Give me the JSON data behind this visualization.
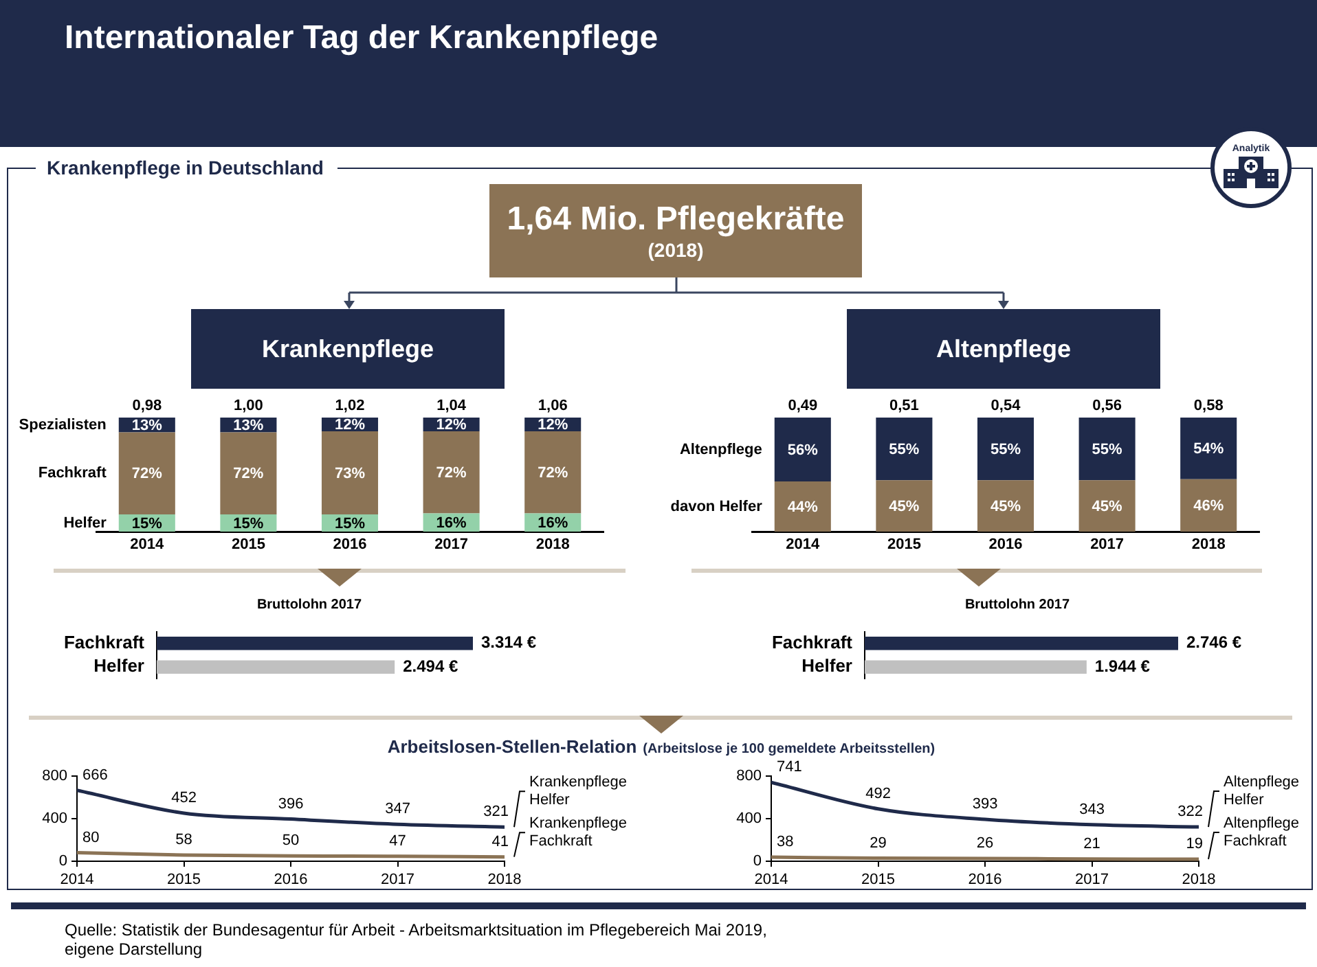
{
  "chart_data": [
    {
      "type": "other",
      "title": "Internationaler Tag der Krankenpflege",
      "subtitle": "Krankenpflege in Deutschland",
      "annotations": [
        "1,64 Mio. Pflegekräfte",
        "(2018)",
        "Analytik",
        "Quelle: Statistik der Bundesagentur für Arbeit - Arbeitsmarktsituation im Pflegebereich Mai 2019, eigene Darstellung",
        "Arbeitslosen-Stellen-Relation",
        "(Arbeitslose je 100 gemeldete Arbeitsstellen)"
      ]
    },
    {
      "type": "bar",
      "title": "Krankenpflege",
      "categories": [
        "2014",
        "2015",
        "2016",
        "2017",
        "2018"
      ],
      "stacked": true,
      "tick_labels": "x",
      "series": [
        {
          "name": "Helfer",
          "color": "#93d1a9",
          "values": [
            15,
            15,
            15,
            16,
            16
          ],
          "value_labels": [
            "15%",
            "15%",
            "15%",
            "16%",
            "16%"
          ]
        },
        {
          "name": "Fachkraft",
          "color": "#8b7355",
          "values": [
            72,
            72,
            73,
            72,
            72
          ],
          "value_labels": [
            "72%",
            "72%",
            "73%",
            "72%",
            "72%"
          ]
        },
        {
          "name": "Spezialisten",
          "color": "#1f2a4a",
          "values": [
            13,
            13,
            12,
            12,
            12
          ],
          "value_labels": [
            "13%",
            "13%",
            "12%",
            "12%",
            "12%"
          ]
        }
      ],
      "annotations": [
        {
          "text": "0,98",
          "x": "2014",
          "y": 100
        },
        {
          "text": "1,00",
          "x": "2015",
          "y": 100
        },
        {
          "text": "1,02",
          "x": "2016",
          "y": 100
        },
        {
          "text": "1,04",
          "x": "2017",
          "y": 100
        },
        {
          "text": "1,06",
          "x": "2018",
          "y": 100
        }
      ]
    },
    {
      "type": "bar",
      "title": "Altenpflege",
      "categories": [
        "2014",
        "2015",
        "2016",
        "2017",
        "2018"
      ],
      "stacked": true,
      "tick_labels": "x",
      "series": [
        {
          "name": "davon Helfer",
          "color": "#8b7355",
          "values": [
            44,
            45,
            45,
            45,
            46
          ],
          "value_labels": [
            "44%",
            "45%",
            "45%",
            "45%",
            "46%"
          ]
        },
        {
          "name": "Altenpflege",
          "color": "#1f2a4a",
          "values": [
            56,
            55,
            55,
            55,
            54
          ],
          "value_labels": [
            "56%",
            "55%",
            "55%",
            "55%",
            "54%"
          ]
        }
      ],
      "annotations": [
        {
          "text": "0,49",
          "x": "2014",
          "y": 100
        },
        {
          "text": "0,51",
          "x": "2015",
          "y": 100
        },
        {
          "text": "0,54",
          "x": "2016",
          "y": 100
        },
        {
          "text": "0,56",
          "x": "2017",
          "y": 100
        },
        {
          "text": "0,58",
          "x": "2018",
          "y": 100
        }
      ]
    },
    {
      "type": "bar",
      "title": "Bruttolohn 2017",
      "orientation": "horizontal",
      "tick_labels": "y",
      "categories": [
        "Fachkraft",
        "Helfer"
      ],
      "values": [
        3314,
        2494
      ],
      "colors": [
        "#1f2a4a",
        "#c0c0c0"
      ],
      "value_labels": [
        "3.314 €",
        "2.494 €"
      ]
    },
    {
      "type": "bar",
      "title": "Bruttolohn 2017",
      "orientation": "horizontal",
      "tick_labels": "y",
      "categories": [
        "Fachkraft",
        "Helfer"
      ],
      "values": [
        2746,
        1944
      ],
      "colors": [
        "#1f2a4a",
        "#c0c0c0"
      ],
      "value_labels": [
        "2.746 €",
        "1.944 €"
      ]
    },
    {
      "type": "line",
      "x": [
        2014,
        2015,
        2016,
        2017,
        2018
      ],
      "xlim": [
        2014,
        2018
      ],
      "xticks": [
        2014,
        2015,
        2016,
        2017,
        2018
      ],
      "ylim": [
        0,
        800
      ],
      "yticks": [
        0,
        400,
        800
      ],
      "grid": false,
      "marker": "none",
      "data_labels": true,
      "series": [
        {
          "name": "Krankenpflege Helfer",
          "color": "#1f2a4a",
          "values": [
            666,
            452,
            396,
            347,
            321
          ]
        },
        {
          "name": "Krankenpflege Fachkraft",
          "color": "#8b7355",
          "values": [
            80,
            58,
            50,
            47,
            41
          ]
        }
      ]
    },
    {
      "type": "line",
      "x": [
        2014,
        2015,
        2016,
        2017,
        2018
      ],
      "xlim": [
        2014,
        2018
      ],
      "xticks": [
        2014,
        2015,
        2016,
        2017,
        2018
      ],
      "ylim": [
        0,
        800
      ],
      "yticks": [
        0,
        400,
        800
      ],
      "grid": false,
      "marker": "none",
      "data_labels": true,
      "series": [
        {
          "name": "Altenpflege Helfer",
          "color": "#1f2a4a",
          "values": [
            741,
            492,
            393,
            343,
            322
          ]
        },
        {
          "name": "Altenpflege Fachkraft",
          "color": "#8b7355",
          "values": [
            38,
            29,
            26,
            21,
            19
          ]
        }
      ]
    }
  ]
}
